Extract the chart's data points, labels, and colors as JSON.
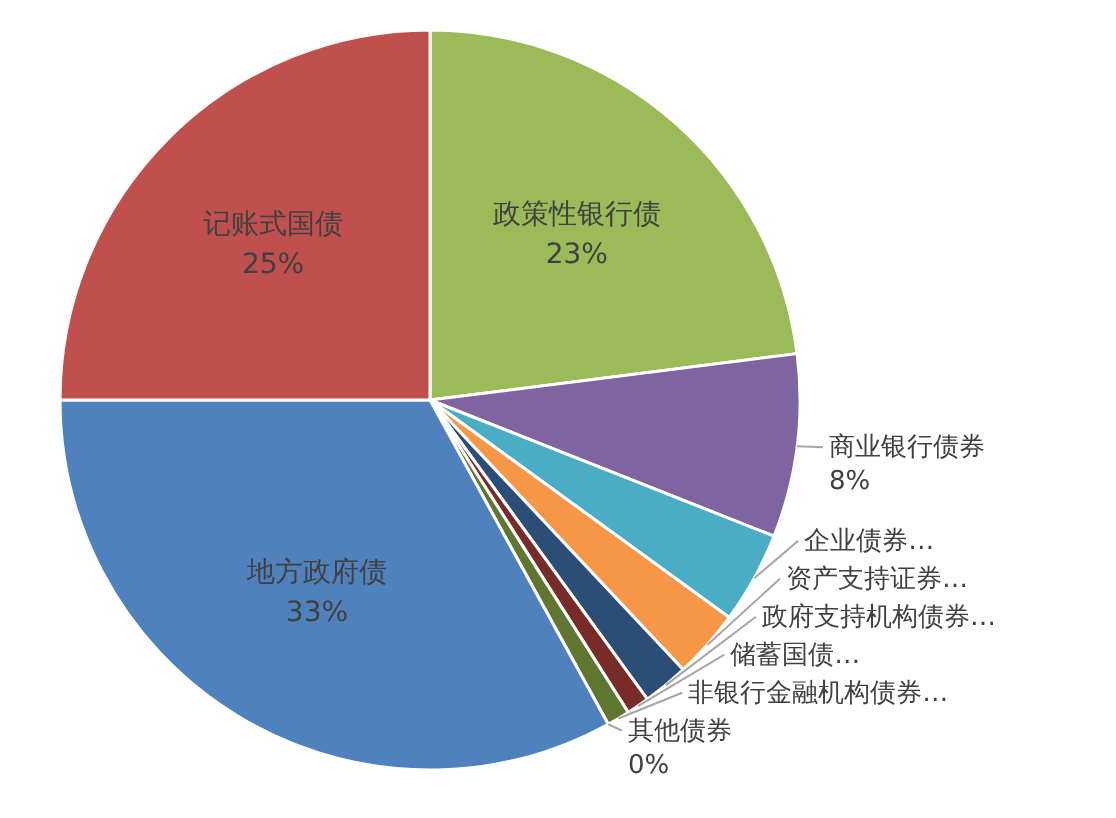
{
  "chart_data": {
    "type": "pie",
    "categories": [
      "政策性银行债",
      "商业银行债券",
      "企业债券…",
      "资产支持证券…",
      "政府支持机构债券…",
      "储蓄国债…",
      "非银行金融机构债券…",
      "其他债券",
      "地方政府债",
      "记账式国债"
    ],
    "values": [
      23,
      8,
      4,
      3,
      2,
      1,
      1,
      0,
      33,
      25
    ],
    "colors": [
      "#9bbb59",
      "#8064a2",
      "#4bacc6",
      "#f79646",
      "#2c4d75",
      "#772c2a",
      "#5f7530",
      "#729aca",
      "#4f81bd",
      "#c0504d"
    ],
    "value_labels": [
      "23%",
      "8%",
      null,
      null,
      null,
      null,
      null,
      "0%",
      "33%",
      "25%"
    ]
  }
}
